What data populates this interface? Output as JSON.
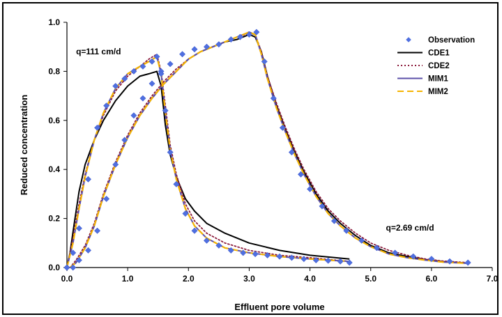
{
  "chart_data": {
    "type": "line",
    "xlabel": "Effluent pore volume",
    "ylabel": "Reduced concentration",
    "xlim": [
      0,
      7
    ],
    "ylim": [
      0,
      1
    ],
    "x_ticks": [
      "0.0",
      "1.0",
      "2.0",
      "3.0",
      "4.0",
      "5.0",
      "6.0",
      "7.0"
    ],
    "y_ticks": [
      "0.0",
      "0.2",
      "0.4",
      "0.6",
      "0.8",
      "1.0"
    ],
    "grid": false,
    "legend_position": "top-right",
    "annotations": [
      {
        "text": "q=111 cm/d",
        "x": 0.15,
        "y": 0.87
      },
      {
        "text": "q=2.69 cm/d",
        "x": 5.25,
        "y": 0.15
      }
    ],
    "series": [
      {
        "name": "Observation",
        "style": "markers",
        "color": "#4f6fe0",
        "x": [
          0.0,
          0.1,
          0.2,
          0.35,
          0.5,
          0.65,
          0.8,
          0.95,
          1.1,
          1.25,
          1.4,
          1.48,
          1.55,
          1.62,
          1.7,
          1.8,
          1.95,
          2.1,
          2.3,
          2.5,
          2.7,
          2.9,
          3.1,
          3.3,
          3.5,
          3.7,
          3.9,
          4.1,
          4.3,
          4.5,
          4.65
        ],
        "y": [
          0.0,
          0.06,
          0.16,
          0.36,
          0.57,
          0.66,
          0.74,
          0.77,
          0.8,
          0.82,
          0.84,
          0.86,
          0.8,
          0.64,
          0.47,
          0.34,
          0.22,
          0.15,
          0.11,
          0.09,
          0.07,
          0.06,
          0.055,
          0.05,
          0.045,
          0.04,
          0.035,
          0.03,
          0.028,
          0.025,
          0.02
        ]
      },
      {
        "name": "",
        "style": "markers",
        "color": "#4f6fe0",
        "x": [
          0.0,
          0.1,
          0.2,
          0.35,
          0.5,
          0.65,
          0.8,
          0.95,
          1.1,
          1.25,
          1.4,
          1.55,
          1.7,
          1.9,
          2.1,
          2.3,
          2.5,
          2.7,
          2.85,
          3.0,
          3.12,
          3.25,
          3.4,
          3.55,
          3.7,
          3.85,
          4.0,
          4.2,
          4.4,
          4.6,
          4.85,
          5.1,
          5.4,
          5.7,
          6.0,
          6.3,
          6.6
        ],
        "y": [
          0.0,
          0.0,
          0.03,
          0.07,
          0.15,
          0.28,
          0.42,
          0.52,
          0.62,
          0.69,
          0.75,
          0.79,
          0.83,
          0.87,
          0.89,
          0.9,
          0.91,
          0.93,
          0.94,
          0.95,
          0.96,
          0.84,
          0.69,
          0.57,
          0.47,
          0.38,
          0.32,
          0.25,
          0.19,
          0.15,
          0.11,
          0.08,
          0.06,
          0.045,
          0.035,
          0.025,
          0.02
        ]
      },
      {
        "name": "CDE1",
        "style": "solid",
        "color": "#000000",
        "x": [
          0.0,
          0.05,
          0.12,
          0.2,
          0.3,
          0.45,
          0.6,
          0.8,
          1.0,
          1.2,
          1.35,
          1.48,
          1.55,
          1.62,
          1.7,
          1.8,
          1.95,
          2.1,
          2.3,
          2.6,
          3.0,
          3.5,
          4.0,
          4.65
        ],
        "y": [
          0.0,
          0.06,
          0.18,
          0.31,
          0.42,
          0.52,
          0.6,
          0.68,
          0.74,
          0.78,
          0.79,
          0.8,
          0.74,
          0.58,
          0.46,
          0.37,
          0.28,
          0.23,
          0.18,
          0.14,
          0.1,
          0.07,
          0.05,
          0.035
        ]
      },
      {
        "name": "",
        "style": "solid",
        "color": "#000000",
        "x": [
          0.05,
          0.15,
          0.3,
          0.45,
          0.6,
          0.8,
          1.0,
          1.2,
          1.4,
          1.6,
          1.8,
          2.0,
          2.2,
          2.4,
          2.6,
          2.8,
          3.0,
          3.1,
          3.2,
          3.3,
          3.45,
          3.6,
          3.75,
          3.9,
          4.1,
          4.3,
          4.5,
          4.75,
          5.0,
          5.3,
          5.6,
          5.9,
          6.2,
          6.6
        ],
        "y": [
          0.0,
          0.02,
          0.08,
          0.17,
          0.29,
          0.42,
          0.53,
          0.62,
          0.69,
          0.75,
          0.8,
          0.85,
          0.88,
          0.9,
          0.92,
          0.93,
          0.95,
          0.94,
          0.88,
          0.78,
          0.66,
          0.56,
          0.47,
          0.39,
          0.3,
          0.23,
          0.18,
          0.13,
          0.09,
          0.06,
          0.045,
          0.032,
          0.024,
          0.018
        ]
      },
      {
        "name": "CDE2",
        "style": "dotted",
        "color": "#8b1a3a",
        "x": [
          0.0,
          0.1,
          0.2,
          0.3,
          0.45,
          0.6,
          0.8,
          1.0,
          1.2,
          1.35,
          1.48,
          1.55,
          1.62,
          1.7,
          1.8,
          1.95,
          2.1,
          2.3,
          2.6,
          3.0,
          3.5,
          4.0,
          4.65
        ],
        "y": [
          0.0,
          0.12,
          0.26,
          0.38,
          0.52,
          0.62,
          0.72,
          0.78,
          0.82,
          0.85,
          0.87,
          0.8,
          0.66,
          0.5,
          0.38,
          0.26,
          0.19,
          0.14,
          0.1,
          0.07,
          0.05,
          0.04,
          0.025
        ]
      },
      {
        "name": "",
        "style": "dotted",
        "color": "#8b1a3a",
        "x": [
          0.05,
          0.15,
          0.3,
          0.45,
          0.6,
          0.8,
          1.0,
          1.2,
          1.4,
          1.6,
          1.8,
          2.0,
          2.2,
          2.4,
          2.6,
          2.8,
          3.0,
          3.1,
          3.2,
          3.3,
          3.45,
          3.6,
          3.75,
          3.9,
          4.1,
          4.3,
          4.5,
          4.75,
          5.0,
          5.3,
          5.6,
          5.9,
          6.2,
          6.6
        ],
        "y": [
          0.0,
          0.03,
          0.09,
          0.18,
          0.3,
          0.43,
          0.54,
          0.63,
          0.7,
          0.76,
          0.81,
          0.85,
          0.88,
          0.9,
          0.92,
          0.94,
          0.955,
          0.95,
          0.88,
          0.78,
          0.67,
          0.57,
          0.48,
          0.4,
          0.31,
          0.24,
          0.19,
          0.14,
          0.1,
          0.07,
          0.05,
          0.035,
          0.026,
          0.02
        ]
      },
      {
        "name": "MIM1",
        "style": "solid",
        "color": "#5b4fa8",
        "x": [
          0.0,
          0.1,
          0.2,
          0.3,
          0.45,
          0.6,
          0.8,
          1.0,
          1.2,
          1.35,
          1.48,
          1.55,
          1.62,
          1.7,
          1.8,
          1.95,
          2.1,
          2.3,
          2.6,
          3.0,
          3.5,
          4.0,
          4.65
        ],
        "y": [
          0.0,
          0.1,
          0.24,
          0.37,
          0.52,
          0.63,
          0.73,
          0.79,
          0.82,
          0.84,
          0.86,
          0.79,
          0.63,
          0.48,
          0.36,
          0.24,
          0.17,
          0.12,
          0.08,
          0.06,
          0.045,
          0.035,
          0.025
        ]
      },
      {
        "name": "",
        "style": "solid",
        "color": "#5b4fa8",
        "x": [
          0.05,
          0.15,
          0.3,
          0.45,
          0.6,
          0.8,
          1.0,
          1.2,
          1.4,
          1.6,
          1.8,
          2.0,
          2.2,
          2.4,
          2.6,
          2.8,
          3.0,
          3.1,
          3.2,
          3.3,
          3.45,
          3.6,
          3.75,
          3.9,
          4.1,
          4.3,
          4.5,
          4.75,
          5.0,
          5.3,
          5.6,
          5.9,
          6.2,
          6.6
        ],
        "y": [
          0.0,
          0.02,
          0.08,
          0.17,
          0.29,
          0.42,
          0.53,
          0.62,
          0.69,
          0.75,
          0.8,
          0.85,
          0.88,
          0.9,
          0.92,
          0.94,
          0.96,
          0.95,
          0.87,
          0.77,
          0.65,
          0.55,
          0.46,
          0.38,
          0.29,
          0.22,
          0.17,
          0.12,
          0.085,
          0.055,
          0.04,
          0.03,
          0.022,
          0.017
        ]
      },
      {
        "name": "MIM2",
        "style": "dashed",
        "color": "#f5b400",
        "x": [
          0.0,
          0.1,
          0.2,
          0.3,
          0.45,
          0.6,
          0.8,
          1.0,
          1.2,
          1.35,
          1.48,
          1.55,
          1.62,
          1.7,
          1.8,
          1.95,
          2.1,
          2.3,
          2.6,
          3.0,
          3.5,
          4.0,
          4.65
        ],
        "y": [
          0.0,
          0.1,
          0.24,
          0.37,
          0.52,
          0.63,
          0.73,
          0.79,
          0.82,
          0.84,
          0.86,
          0.79,
          0.63,
          0.48,
          0.36,
          0.24,
          0.17,
          0.12,
          0.08,
          0.06,
          0.045,
          0.035,
          0.025
        ]
      },
      {
        "name": "",
        "style": "dashed",
        "color": "#f5b400",
        "x": [
          0.05,
          0.15,
          0.3,
          0.45,
          0.6,
          0.8,
          1.0,
          1.2,
          1.4,
          1.6,
          1.8,
          2.0,
          2.2,
          2.4,
          2.6,
          2.8,
          3.0,
          3.1,
          3.2,
          3.3,
          3.45,
          3.6,
          3.75,
          3.9,
          4.1,
          4.3,
          4.5,
          4.75,
          5.0,
          5.3,
          5.6,
          5.9,
          6.2,
          6.6
        ],
        "y": [
          0.0,
          0.02,
          0.08,
          0.17,
          0.29,
          0.42,
          0.53,
          0.62,
          0.69,
          0.75,
          0.8,
          0.85,
          0.88,
          0.9,
          0.92,
          0.94,
          0.96,
          0.95,
          0.87,
          0.77,
          0.65,
          0.55,
          0.46,
          0.38,
          0.29,
          0.22,
          0.17,
          0.12,
          0.085,
          0.055,
          0.04,
          0.03,
          0.022,
          0.017
        ]
      }
    ]
  }
}
